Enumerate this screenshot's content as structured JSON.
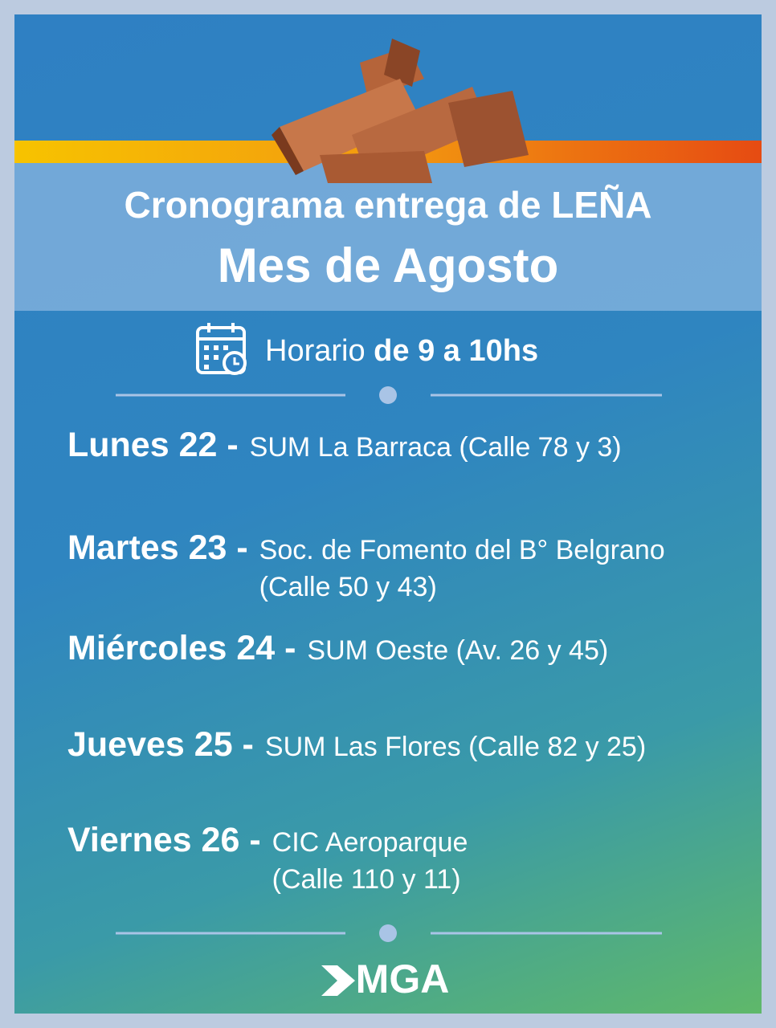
{
  "header": {
    "title": "Cronograma entrega de LEÑA",
    "subtitle": "Mes de Agosto"
  },
  "schedule": {
    "label": "Horario",
    "hours": "de 9 a 10hs"
  },
  "entries": [
    {
      "day": "Lunes 22 -",
      "place": [
        "SUM La Barraca (Calle 78 y 3)"
      ]
    },
    {
      "day": "Martes 23 -",
      "place": [
        "Soc. de Fomento del B° Belgrano",
        "(Calle 50 y 43)"
      ]
    },
    {
      "day": "Miércoles 24 -",
      "place": [
        "SUM Oeste (Av. 26 y 45)"
      ]
    },
    {
      "day": "Jueves 25 -",
      "place": [
        "SUM Las Flores (Calle 82 y 25)"
      ]
    },
    {
      "day": "Viernes 26 -",
      "place": [
        "CIC Aeroparque",
        "(Calle 110 y 11)"
      ]
    }
  ],
  "footer": {
    "logo": "MGA"
  }
}
